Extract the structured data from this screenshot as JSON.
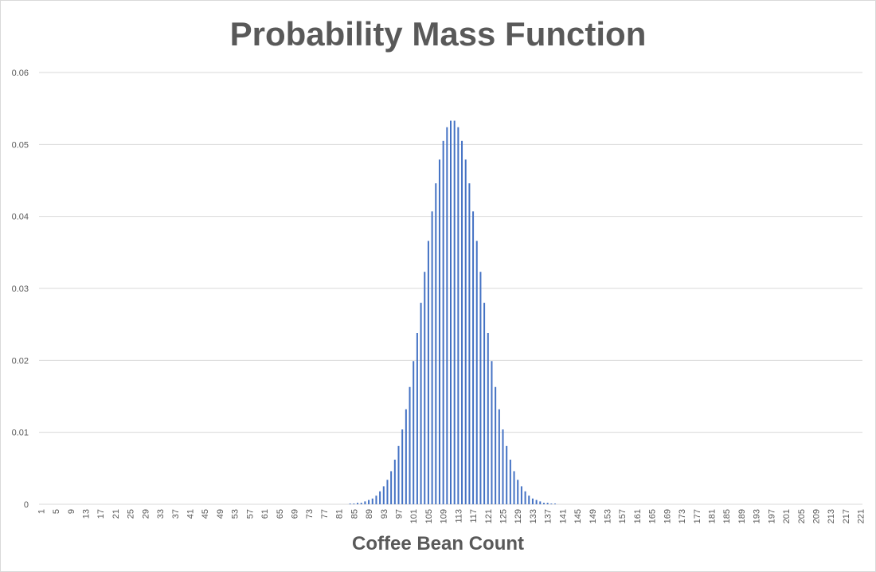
{
  "chart_data": {
    "type": "bar",
    "title": "Probability Mass Function",
    "xlabel": "Coffee Bean Count",
    "ylabel": "",
    "ylim": [
      0,
      0.06
    ],
    "y_ticks": [
      "0",
      "0.01",
      "0.02",
      "0.03",
      "0.04",
      "0.05",
      "0.06"
    ],
    "x_first": 1,
    "x_last": 221,
    "x_tick_labels": [
      "1",
      "5",
      "9",
      "13",
      "17",
      "21",
      "25",
      "29",
      "33",
      "37",
      "41",
      "45",
      "49",
      "53",
      "57",
      "61",
      "65",
      "69",
      "73",
      "77",
      "81",
      "85",
      "89",
      "93",
      "97",
      "101",
      "105",
      "109",
      "113",
      "117",
      "121",
      "125",
      "129",
      "133",
      "137",
      "141",
      "145",
      "149",
      "153",
      "157",
      "161",
      "165",
      "169",
      "173",
      "177",
      "181",
      "185",
      "189",
      "193",
      "197",
      "201",
      "205",
      "209",
      "213",
      "217",
      "221"
    ],
    "grid": "horizontal",
    "legend": "none",
    "bar_color": "#4472C4",
    "values": [
      0,
      0,
      0,
      0,
      0,
      0,
      0,
      0,
      0,
      0,
      0,
      0,
      0,
      0,
      0,
      0,
      0,
      0,
      0,
      0,
      0,
      0,
      0,
      0,
      0,
      0,
      0,
      0,
      0,
      0,
      0,
      0,
      0,
      0,
      0,
      0,
      0,
      0,
      0,
      0,
      0,
      0,
      0,
      0,
      0,
      0,
      0,
      0,
      0,
      0,
      0,
      0,
      0,
      0,
      0,
      0,
      0,
      0,
      0,
      0,
      0,
      0,
      0,
      0,
      0,
      0,
      0,
      0,
      0,
      0,
      0,
      0,
      0,
      0,
      0,
      0,
      0,
      0,
      0,
      0,
      0,
      0,
      0,
      0.0001,
      0.0001,
      0.0002,
      0.0002,
      0.0004,
      0.0006,
      0.0008,
      0.0012,
      0.0018,
      0.0025,
      0.0034,
      0.0046,
      0.0062,
      0.0081,
      0.0104,
      0.0132,
      0.0163,
      0.0199,
      0.0238,
      0.028,
      0.0323,
      0.0366,
      0.0407,
      0.0446,
      0.0479,
      0.0505,
      0.0524,
      0.0533,
      0.0533,
      0.0524,
      0.0505,
      0.0479,
      0.0446,
      0.0407,
      0.0366,
      0.0323,
      0.028,
      0.0238,
      0.0199,
      0.0163,
      0.0132,
      0.0104,
      0.0081,
      0.0062,
      0.0046,
      0.0034,
      0.0025,
      0.0018,
      0.0012,
      0.0008,
      0.0006,
      0.0004,
      0.0002,
      0.0002,
      0.0001,
      0.0001,
      0,
      0,
      0,
      0,
      0,
      0,
      0,
      0,
      0,
      0,
      0,
      0,
      0,
      0,
      0,
      0,
      0,
      0,
      0,
      0,
      0,
      0,
      0,
      0,
      0,
      0,
      0,
      0,
      0,
      0,
      0,
      0,
      0,
      0,
      0,
      0,
      0,
      0,
      0,
      0,
      0,
      0,
      0,
      0,
      0,
      0,
      0,
      0,
      0,
      0,
      0,
      0,
      0,
      0,
      0,
      0,
      0,
      0,
      0,
      0,
      0,
      0,
      0,
      0,
      0,
      0,
      0,
      0,
      0,
      0,
      0,
      0,
      0,
      0,
      0,
      0,
      0,
      0,
      0,
      0,
      0,
      0
    ]
  }
}
